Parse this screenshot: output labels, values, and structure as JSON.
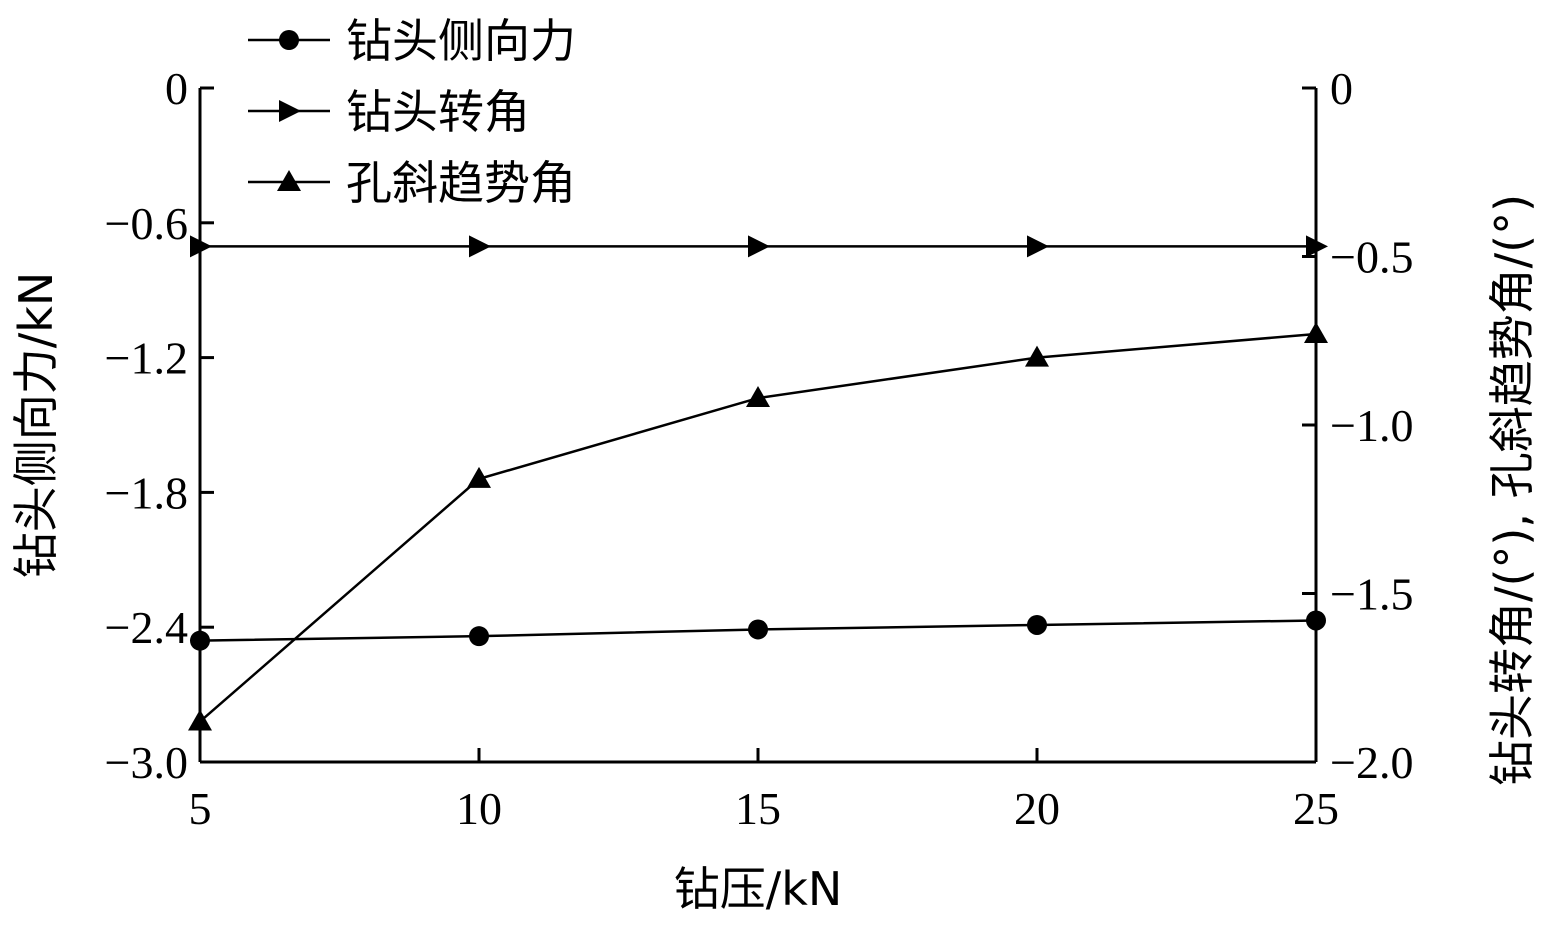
{
  "chart_data": {
    "type": "line",
    "x": [
      5,
      10,
      15,
      20,
      25
    ],
    "xlabel": "钻压/kN",
    "ylabel_left": "钻头侧向力/kN",
    "ylabel_right": "钻头转角/(°), 孔斜趋势角/(°)",
    "xlim": [
      5,
      25
    ],
    "ylim_left": [
      -3.0,
      0
    ],
    "ylim_right": [
      -2.0,
      0
    ],
    "x_ticks": [
      "5",
      "10",
      "15",
      "20",
      "25"
    ],
    "y_ticks_left": [
      "0",
      "−0.6",
      "−1.2",
      "−1.8",
      "−2.4",
      "−3.0"
    ],
    "y_ticks_right": [
      "0",
      "−0.5",
      "−1.0",
      "−1.5",
      "−2.0"
    ],
    "grid": false,
    "legend_position": "top-left",
    "series": [
      {
        "name": "钻头侧向力",
        "axis": "left",
        "marker": "circle",
        "values": [
          -2.46,
          -2.44,
          -2.41,
          -2.39,
          -2.37
        ]
      },
      {
        "name": "钻头转角",
        "axis": "right",
        "marker": "triangle-right",
        "values": [
          -0.47,
          -0.47,
          -0.47,
          -0.47,
          -0.47
        ]
      },
      {
        "name": "孔斜趋势角",
        "axis": "right",
        "marker": "triangle-up",
        "values": [
          -1.88,
          -1.16,
          -0.92,
          -0.8,
          -0.73
        ]
      }
    ]
  }
}
